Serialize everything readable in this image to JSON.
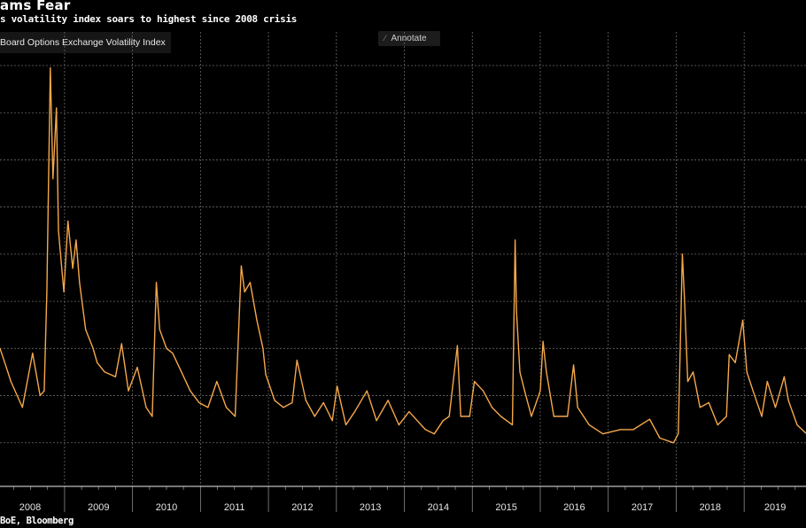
{
  "header": {
    "title": "ams Fear",
    "subtitle": "s volatility index soars to highest since 2008 crisis"
  },
  "legend": {
    "label": "Board Options Exchange Volatility Index"
  },
  "annotate": {
    "label": "Annotate",
    "icon": "pencil-icon"
  },
  "source": "BoE, Bloomberg",
  "colors": {
    "background": "#000000",
    "series": "#f6a84a",
    "grid": "#6a6a6a"
  },
  "chart_data": {
    "type": "line",
    "title": "ams Fear",
    "subtitle": "s volatility index soars to highest since 2008 crisis",
    "xlabel": "",
    "ylabel": "",
    "xlim": [
      2008.05,
      2019.91
    ],
    "ylim": [
      0,
      90
    ],
    "y_gridlines": [
      10,
      20,
      30,
      40,
      50,
      60,
      70,
      80,
      90
    ],
    "grid": true,
    "legend_placement": "top-left",
    "x_tick_labels": [
      "2008",
      "2009",
      "2010",
      "2011",
      "2012",
      "2013",
      "2014",
      "2015",
      "2016",
      "2017",
      "2018",
      "2019"
    ],
    "series": [
      {
        "name": "Board Options Exchange Volatility Index",
        "x": [
          2008.05,
          2008.12,
          2008.21,
          2008.38,
          2008.53,
          2008.64,
          2008.7,
          2008.74,
          2008.79,
          2008.83,
          2008.88,
          2008.91,
          2008.99,
          2009.05,
          2009.12,
          2009.17,
          2009.22,
          2009.31,
          2009.42,
          2009.48,
          2009.59,
          2009.75,
          2009.84,
          2009.94,
          2010.07,
          2010.2,
          2010.29,
          2010.35,
          2010.4,
          2010.5,
          2010.59,
          2010.72,
          2010.85,
          2010.98,
          2011.11,
          2011.24,
          2011.38,
          2011.51,
          2011.6,
          2011.65,
          2011.73,
          2011.83,
          2011.92,
          2011.96,
          2012.09,
          2012.22,
          2012.35,
          2012.42,
          2012.55,
          2012.68,
          2012.81,
          2012.94,
          2013.01,
          2013.14,
          2013.27,
          2013.45,
          2013.59,
          2013.76,
          2013.92,
          2014.07,
          2014.31,
          2014.44,
          2014.57,
          2014.66,
          2014.78,
          2014.83,
          2014.96,
          2015.03,
          2015.16,
          2015.29,
          2015.42,
          2015.59,
          2015.63,
          2015.65,
          2015.7,
          2015.77,
          2015.87,
          2016.0,
          2016.04,
          2016.09,
          2016.2,
          2016.4,
          2016.49,
          2016.55,
          2016.72,
          2016.92,
          2017.18,
          2017.37,
          2017.61,
          2017.76,
          2017.96,
          2018.03,
          2018.09,
          2018.12,
          2018.17,
          2018.25,
          2018.35,
          2018.48,
          2018.61,
          2018.74,
          2018.78,
          2018.87,
          2018.98,
          2019.04,
          2019.13,
          2019.26,
          2019.34,
          2019.46,
          2019.59,
          2019.65,
          2019.78,
          2019.91
        ],
        "y": [
          30,
          27,
          23,
          17.5,
          29,
          20,
          21,
          42,
          89.5,
          66,
          81,
          55,
          42,
          57,
          47,
          53,
          44,
          34,
          30,
          27,
          25,
          24,
          31,
          21,
          26,
          17.5,
          15.6,
          44,
          34,
          30,
          29,
          25,
          21,
          18.5,
          17.5,
          23,
          17.5,
          15.6,
          47.5,
          42,
          44,
          36,
          30,
          24.5,
          19,
          17.5,
          18.5,
          27.5,
          19,
          15.6,
          18.5,
          14.7,
          22,
          13.8,
          16.6,
          21,
          14.7,
          19,
          13.8,
          16.6,
          12.8,
          11.9,
          14.7,
          15.6,
          30.6,
          15.6,
          15.6,
          23,
          21,
          17.5,
          15.6,
          13.8,
          53,
          38,
          25,
          21,
          15.6,
          21,
          31.5,
          25,
          15.6,
          15.6,
          26.5,
          17.5,
          13.8,
          11.9,
          12.8,
          12.8,
          15,
          11,
          10,
          11.9,
          50,
          41,
          23,
          25,
          17.5,
          18.5,
          13.8,
          15.6,
          28.7,
          27,
          36,
          25,
          21,
          15.6,
          23,
          17.5,
          24,
          19,
          13.8,
          12
        ]
      }
    ]
  }
}
